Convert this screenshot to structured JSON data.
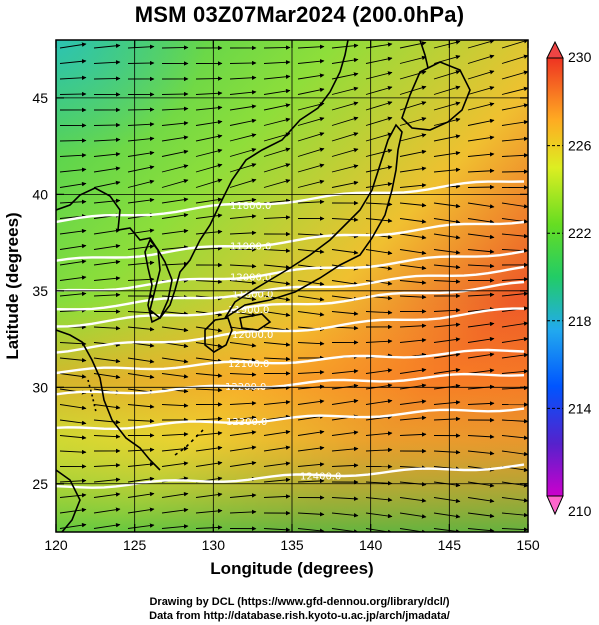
{
  "title": "MSM 03Z07Mar2024 (200.0hPa)",
  "x_axis": {
    "label": "Longitude (degrees)",
    "range": [
      120,
      150
    ],
    "ticks": [
      "120",
      "125",
      "130",
      "135",
      "140",
      "145",
      "150"
    ]
  },
  "y_axis": {
    "label": "Latitude  (degrees)",
    "range": [
      22.5,
      48
    ],
    "ticks": [
      "25",
      "30",
      "35",
      "40",
      "45"
    ]
  },
  "colorbar": {
    "min": 210,
    "max": 230,
    "tick_labels": [
      "230",
      "226",
      "222",
      "218",
      "214",
      "210"
    ],
    "colors": [
      "#ff66cc",
      "#cc00cc",
      "#2222cc",
      "#0077ff",
      "#22cccc",
      "#22cc66",
      "#66dd22",
      "#ccee22",
      "#ffcc22",
      "#ff8822",
      "#ee3322"
    ]
  },
  "contours": [
    {
      "label": "11800.0",
      "lat": 38.6
    },
    {
      "label": "11900.0",
      "lat": 36.5
    },
    {
      "label": "12000.0",
      "lat": 34.9
    },
    {
      "label": "11800.0",
      "lat": 34.0
    },
    {
      "label": "11900.0",
      "lat": 33.2
    },
    {
      "label": "12000.0",
      "lat": 31.9
    },
    {
      "label": "12100.0",
      "lat": 30.8
    },
    {
      "label": "12200.0",
      "lat": 29.6
    },
    {
      "label": "12300.0",
      "lat": 27.8
    },
    {
      "label": "12400.0",
      "lat": 24.8
    }
  ],
  "credits": {
    "line1": "Drawing by DCL (https://www.gfd-dennou.org/library/dcl/)",
    "line2": "Data from http://database.rish.kyoto-u.ac.jp/arch/jmadata/"
  }
}
